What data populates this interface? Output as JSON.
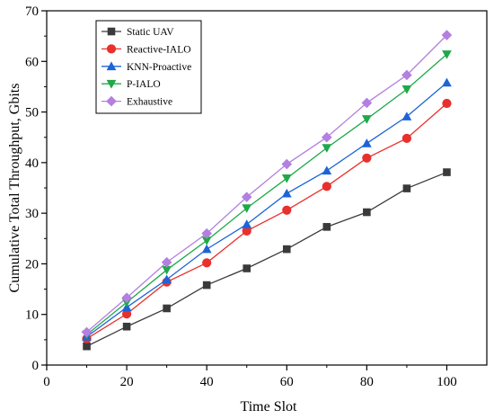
{
  "chart_data": {
    "type": "line",
    "xlabel": "Time Slot",
    "ylabel": "Cumulative Total Throughput, Gbits",
    "xlim": [
      0,
      110
    ],
    "ylim": [
      0,
      70
    ],
    "x_ticks": [
      0,
      20,
      40,
      60,
      80,
      100
    ],
    "y_ticks": [
      0,
      10,
      20,
      30,
      40,
      50,
      60,
      70
    ],
    "grid": false,
    "legend_position": "top-left",
    "x": [
      10,
      20,
      30,
      40,
      50,
      60,
      70,
      80,
      90,
      100
    ],
    "series": [
      {
        "name": "Static UAV",
        "color": "#3a3a3a",
        "marker": "square",
        "values": [
          3.7,
          7.6,
          11.2,
          15.8,
          19.1,
          22.9,
          27.3,
          30.2,
          34.9,
          38.1
        ]
      },
      {
        "name": "Reactive-IALO",
        "color": "#e8302c",
        "marker": "circle",
        "values": [
          5.2,
          10.1,
          16.4,
          20.2,
          26.5,
          30.6,
          35.3,
          40.9,
          44.8,
          51.7
        ]
      },
      {
        "name": "KNN-Proactive",
        "color": "#1c64d8",
        "marker": "triangle-up",
        "values": [
          5.6,
          11.4,
          16.9,
          22.9,
          27.8,
          33.9,
          38.4,
          43.8,
          49.1,
          55.8
        ]
      },
      {
        "name": "P-IALO",
        "color": "#20a84a",
        "marker": "triangle-down",
        "values": [
          6.0,
          12.4,
          18.8,
          24.6,
          31.0,
          36.9,
          42.9,
          48.6,
          54.5,
          61.4
        ]
      },
      {
        "name": "Exhaustive",
        "color": "#b37fe0",
        "marker": "diamond",
        "values": [
          6.5,
          13.3,
          20.3,
          26.0,
          33.2,
          39.7,
          45.0,
          51.8,
          57.3,
          65.2
        ]
      }
    ]
  }
}
